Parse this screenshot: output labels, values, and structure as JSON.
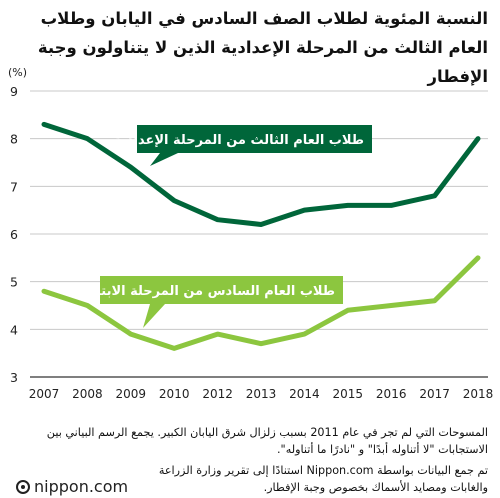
{
  "title": "النسبة المئوية لطلاب الصف السادس في اليابان وطلاب العام الثالث من المرحلة الإعدادية الذين لا يتناولون وجبة الإفطار",
  "chart_data": {
    "type": "line",
    "unit_label": "(%)",
    "categories": [
      "2007",
      "2008",
      "2009",
      "2010",
      "2012",
      "2013",
      "2014",
      "2015",
      "2016",
      "2017",
      "2018"
    ],
    "ylim": [
      3,
      9
    ],
    "yticks": [
      3,
      4,
      5,
      6,
      7,
      8,
      9
    ],
    "grid": true,
    "series": [
      {
        "name": "طلاب العام الثالث من المرحلة الإعدادية",
        "color": "#00663a",
        "values": [
          8.3,
          8.0,
          7.4,
          6.7,
          6.3,
          6.2,
          6.5,
          6.6,
          6.6,
          6.8,
          8.0
        ]
      },
      {
        "name": "طلاب العام السادس من المرحلة الابتدائية",
        "color": "#8cc63f",
        "values": [
          4.8,
          4.5,
          3.9,
          3.6,
          3.9,
          3.7,
          3.9,
          4.4,
          4.5,
          4.6,
          5.5
        ]
      }
    ]
  },
  "notes": "المسوحات التي لم تجر في عام 2011 بسبب زلزال شرق اليابان الكبير. يجمع الرسم البياني بين الاستجابات \"لا أتناوله أبدًا\" و \"نادرًا ما أتناوله\".",
  "source": "تم جمع البيانات بواسطة Nippon.com استنادًا إلى تقرير وزارة الزراعة والغابات ومصايد الأسماك بخصوص وجبة الإفطار.",
  "logo_text": "nippon.com"
}
